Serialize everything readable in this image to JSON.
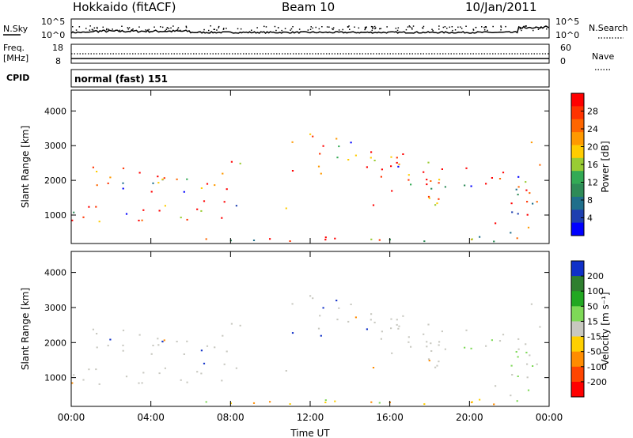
{
  "header": {
    "station": "Hokkaido (fitACF)",
    "beam": "Beam 10",
    "date": "10/Jan/2011"
  },
  "status_panels": {
    "nsky_label": "N.Sky",
    "nsearch_label": "N.Search",
    "noise_ticks": [
      "10^5",
      "10^0"
    ],
    "freq_label_line1": "Freq.",
    "freq_label_line2": "[MHz]",
    "freq_ticks": [
      "18",
      "8"
    ],
    "nave_label": "Nave",
    "nave_ticks": [
      "60",
      "0"
    ],
    "cpid_label": "CPID",
    "cpid_text": "normal (fast) 151"
  },
  "chart_data": [
    {
      "type": "heatmap",
      "name": "power-panel",
      "ylabel": "Slant Range [km]",
      "yticks": [
        1000,
        2000,
        3000,
        4000
      ],
      "ylim": [
        180,
        4600
      ],
      "xticks": [
        "00:00",
        "04:00",
        "08:00",
        "12:00",
        "16:00",
        "20:00",
        "00:00"
      ],
      "xlim_hours": [
        0,
        24
      ],
      "colorbar": {
        "label": "Power [dB]",
        "ticks": [
          "28",
          "24",
          "20",
          "16",
          "12",
          "8",
          "4"
        ],
        "colors": [
          "#ff0000",
          "#ff3300",
          "#ff6600",
          "#ff9900",
          "#ffcc00",
          "#99cc33",
          "#33aa55",
          "#2e8b57",
          "#1f6f8b",
          "#1e3fb0",
          "#0000ff"
        ]
      }
    },
    {
      "type": "heatmap",
      "name": "velocity-panel",
      "ylabel": "Slant Range [km]",
      "yticks": [
        1000,
        2000,
        3000,
        4000
      ],
      "ylim": [
        180,
        4600
      ],
      "xticks": [
        "00:00",
        "04:00",
        "08:00",
        "12:00",
        "16:00",
        "20:00",
        "00:00"
      ],
      "xlim_hours": [
        0,
        24
      ],
      "xlabel": "Time UT",
      "colorbar": {
        "label": "Velocity [m s⁻¹]",
        "ticks": [
          "200",
          "100",
          "50",
          "15",
          "-15",
          "-50",
          "-100",
          "-200"
        ],
        "colors": [
          "#1030c8",
          "#2f7f2f",
          "#22a822",
          "#7ed957",
          "#c8c8c0",
          "#ffd000",
          "#ff8c00",
          "#ff4500",
          "#ff0000"
        ]
      }
    }
  ]
}
